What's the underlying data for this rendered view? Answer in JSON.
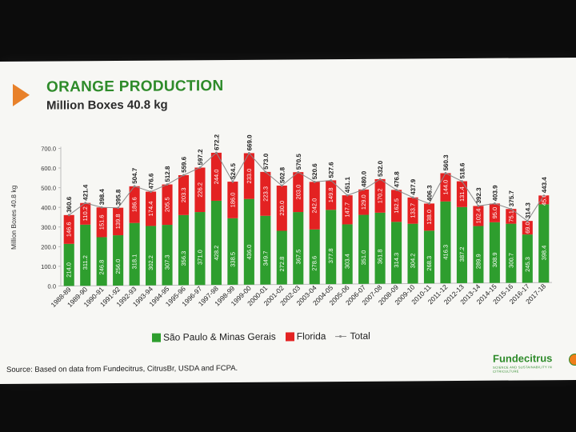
{
  "title": "ORANGE PRODUCTION",
  "subtitle": "Million Boxes 40.8 kg",
  "source": "Source: Based on data from Fundecitrus, CitrusBr, USDA and FCPA.",
  "logo": {
    "name": "Fundecitrus",
    "tagline": "SCIENCE AND SUSTAINABILITY IN CITRICULTURE"
  },
  "colors": {
    "sp_mg": "#2e9e2e",
    "florida": "#e32222",
    "total": "#8a8a8a",
    "title": "#2e8b2a",
    "accent": "#e8812a"
  },
  "chart_data": {
    "type": "bar",
    "stacked": true,
    "ylabel": "Million Boxes 40.8 kg",
    "ylim": [
      0,
      700
    ],
    "yticks": [
      "0.0",
      "100.0",
      "200.0",
      "300.0",
      "400.0",
      "500.0",
      "600.0",
      "700.0"
    ],
    "categories": [
      "1988-89",
      "1989-90",
      "1990-91",
      "1991-92",
      "1992-93",
      "1993-94",
      "1994-95",
      "1995-96",
      "1996-97",
      "1997-98",
      "1998-99",
      "1999-00",
      "2000-01",
      "2001-02",
      "2002-03",
      "2003-04",
      "2004-05",
      "2005-06",
      "2006-07",
      "2007-08",
      "2008-09",
      "2009-10",
      "2010-11",
      "2011-12",
      "2012-13",
      "2013-14",
      "2014-15",
      "2015-16",
      "2016-17",
      "2017-18"
    ],
    "series": [
      {
        "name": "São Paulo & Minas Gerais",
        "values": [
          214.0,
          311.2,
          246.8,
          256.0,
          318.1,
          302.2,
          307.3,
          356.3,
          371.0,
          428.2,
          338.5,
          436.0,
          349.7,
          272.8,
          367.5,
          278.6,
          377.8,
          303.4,
          351.0,
          361.8,
          314.3,
          304.2,
          268.3,
          416.3,
          387.2,
          289.9,
          308.9,
          300.7,
          245.3,
          398.4
        ]
      },
      {
        "name": "Florida",
        "values": [
          146.6,
          110.2,
          151.6,
          139.8,
          186.6,
          174.4,
          205.5,
          203.3,
          226.2,
          244.0,
          186.0,
          233.0,
          223.3,
          230.0,
          203.0,
          242.0,
          149.8,
          147.7,
          129.0,
          170.2,
          162.5,
          133.7,
          138.0,
          144.0,
          131.4,
          102.4,
          95.0,
          75.1,
          69.0,
          45.0
        ]
      },
      {
        "name": "Total",
        "values": [
          360.6,
          421.4,
          398.4,
          395.8,
          504.7,
          476.6,
          512.8,
          559.6,
          597.2,
          672.2,
          524.5,
          669.0,
          573.0,
          502.8,
          570.5,
          520.6,
          527.6,
          451.1,
          480.0,
          532.0,
          476.8,
          437.9,
          406.3,
          560.3,
          518.6,
          392.3,
          403.9,
          375.7,
          314.3,
          443.4
        ]
      }
    ],
    "legend": [
      "São Paulo & Minas Gerais",
      "Florida",
      "Total"
    ],
    "legend_position": "bottom",
    "grid": false
  }
}
